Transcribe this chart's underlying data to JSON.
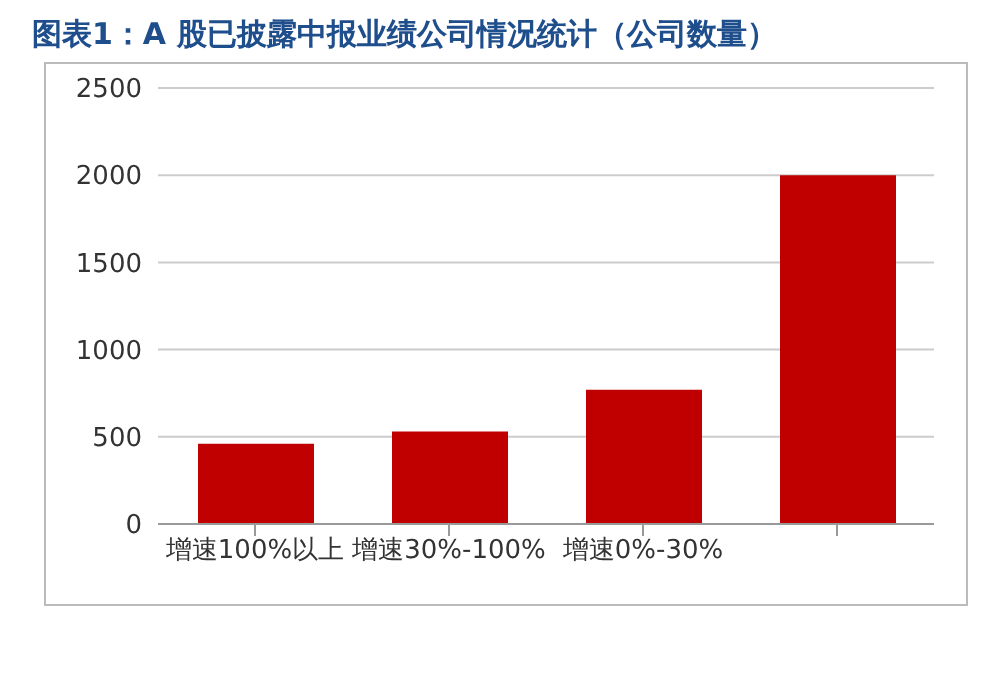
{
  "chart_data": {
    "type": "bar",
    "title": "图表1：A 股已披露中报业绩公司情况统计（公司数量）",
    "categories": [
      "增速100%以上",
      "增速30%-100%",
      "增速0%-30%",
      null
    ],
    "values": [
      460,
      530,
      770,
      2000
    ],
    "color": "#c00000",
    "ylim": [
      0,
      2500
    ],
    "yticks": [
      0,
      500,
      1000,
      1500,
      2000,
      2500
    ],
    "grid": "y"
  }
}
